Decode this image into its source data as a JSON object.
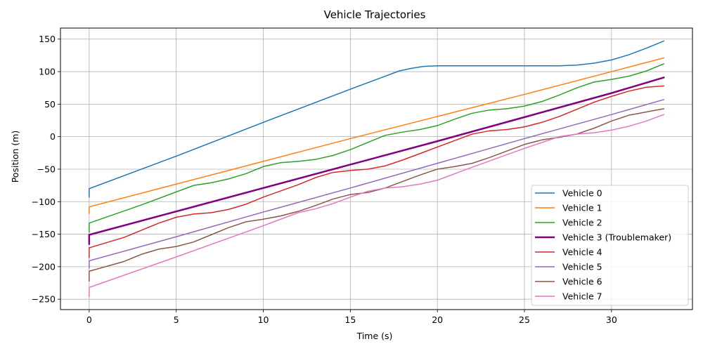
{
  "chart_data": {
    "type": "line",
    "title": "Vehicle Trajectories",
    "xlabel": "Time (s)",
    "ylabel": "Position (m)",
    "xlim": [
      -1.65,
      34.65
    ],
    "ylim": [
      -266,
      167
    ],
    "xticks": [
      0,
      5,
      10,
      15,
      20,
      25,
      30
    ],
    "yticks": [
      -250,
      -200,
      -150,
      -100,
      -50,
      0,
      50,
      100,
      150
    ],
    "grid": true,
    "legend_position": "lower-right",
    "series": [
      {
        "name": "Vehicle 0",
        "color": "#1f77b4",
        "width": 1.5,
        "points": [
          [
            0,
            -93
          ],
          [
            0,
            -80
          ],
          [
            5,
            -30
          ],
          [
            10,
            22
          ],
          [
            15,
            73
          ],
          [
            17,
            93
          ],
          [
            17.8,
            101
          ],
          [
            18.5,
            105
          ],
          [
            19.2,
            108
          ],
          [
            20,
            109
          ],
          [
            22,
            109
          ],
          [
            25,
            109
          ],
          [
            27,
            109
          ],
          [
            28,
            110
          ],
          [
            29,
            113
          ],
          [
            30,
            118
          ],
          [
            31,
            126
          ],
          [
            32,
            136
          ],
          [
            33,
            147
          ]
        ]
      },
      {
        "name": "Vehicle 1",
        "color": "#ff7f0e",
        "width": 1.5,
        "points": [
          [
            0,
            -118
          ],
          [
            0,
            -108
          ],
          [
            5,
            -73
          ],
          [
            10,
            -38
          ],
          [
            15,
            -3
          ],
          [
            20,
            31
          ],
          [
            25,
            65
          ],
          [
            30,
            100
          ],
          [
            33,
            121
          ]
        ]
      },
      {
        "name": "Vehicle 2",
        "color": "#2ca02c",
        "width": 1.5,
        "points": [
          [
            0,
            -147
          ],
          [
            0,
            -133
          ],
          [
            3,
            -105
          ],
          [
            5,
            -85
          ],
          [
            6,
            -75
          ],
          [
            7,
            -71
          ],
          [
            8,
            -65
          ],
          [
            9,
            -57
          ],
          [
            10,
            -46
          ],
          [
            11,
            -40
          ],
          [
            12,
            -38
          ],
          [
            13,
            -35
          ],
          [
            14,
            -29
          ],
          [
            15,
            -20
          ],
          [
            16,
            -9
          ],
          [
            17,
            2
          ],
          [
            18,
            7
          ],
          [
            19,
            11
          ],
          [
            20,
            17
          ],
          [
            21,
            27
          ],
          [
            22,
            36
          ],
          [
            23,
            41
          ],
          [
            24,
            43
          ],
          [
            25,
            47
          ],
          [
            26,
            54
          ],
          [
            27,
            64
          ],
          [
            28,
            75
          ],
          [
            29,
            84
          ],
          [
            30,
            88
          ],
          [
            31,
            93
          ],
          [
            32,
            101
          ],
          [
            33,
            112
          ]
        ]
      },
      {
        "name": "Vehicle 3 (Troublemaker)",
        "color": "#800080",
        "width": 2.5,
        "points": [
          [
            0,
            -165
          ],
          [
            0,
            -151
          ],
          [
            5,
            -115
          ],
          [
            10,
            -79
          ],
          [
            15,
            -43
          ],
          [
            20,
            -7
          ],
          [
            25,
            30
          ],
          [
            30,
            67
          ],
          [
            33,
            91
          ]
        ]
      },
      {
        "name": "Vehicle 4",
        "color": "#d62728",
        "width": 1.5,
        "points": [
          [
            0,
            -186
          ],
          [
            0,
            -171
          ],
          [
            2,
            -155
          ],
          [
            4,
            -133
          ],
          [
            5,
            -124
          ],
          [
            6,
            -119
          ],
          [
            7,
            -117
          ],
          [
            8,
            -112
          ],
          [
            9,
            -104
          ],
          [
            10,
            -93
          ],
          [
            12,
            -74
          ],
          [
            13,
            -63
          ],
          [
            14,
            -55
          ],
          [
            15,
            -52
          ],
          [
            16,
            -50
          ],
          [
            17,
            -45
          ],
          [
            18,
            -36
          ],
          [
            19,
            -26
          ],
          [
            20,
            -16
          ],
          [
            21,
            -6
          ],
          [
            22,
            4
          ],
          [
            23,
            9
          ],
          [
            24,
            11
          ],
          [
            25,
            15
          ],
          [
            26,
            22
          ],
          [
            27,
            31
          ],
          [
            28,
            42
          ],
          [
            29,
            53
          ],
          [
            30,
            62
          ],
          [
            31,
            70
          ],
          [
            32,
            76
          ],
          [
            33,
            78
          ]
        ]
      },
      {
        "name": "Vehicle 5",
        "color": "#9467bd",
        "width": 1.5,
        "points": [
          [
            0,
            -202
          ],
          [
            0,
            -191
          ],
          [
            5,
            -154
          ],
          [
            10,
            -116
          ],
          [
            15,
            -79
          ],
          [
            20,
            -41
          ],
          [
            25,
            -3
          ],
          [
            30,
            34
          ],
          [
            33,
            57
          ]
        ]
      },
      {
        "name": "Vehicle 6",
        "color": "#8c564b",
        "width": 1.5,
        "points": [
          [
            0,
            -222
          ],
          [
            0,
            -207
          ],
          [
            2,
            -192
          ],
          [
            3,
            -181
          ],
          [
            4,
            -173
          ],
          [
            5,
            -169
          ],
          [
            6,
            -162
          ],
          [
            7,
            -151
          ],
          [
            8,
            -140
          ],
          [
            9,
            -131
          ],
          [
            10,
            -127
          ],
          [
            11,
            -122
          ],
          [
            12,
            -115
          ],
          [
            13,
            -106
          ],
          [
            14,
            -96
          ],
          [
            15,
            -89
          ],
          [
            16,
            -86
          ],
          [
            17,
            -79
          ],
          [
            18,
            -69
          ],
          [
            19,
            -59
          ],
          [
            20,
            -50
          ],
          [
            21,
            -46
          ],
          [
            22,
            -41
          ],
          [
            23,
            -32
          ],
          [
            24,
            -22
          ],
          [
            25,
            -12
          ],
          [
            26,
            -5
          ],
          [
            27,
            -1
          ],
          [
            28,
            4
          ],
          [
            29,
            13
          ],
          [
            30,
            24
          ],
          [
            31,
            33
          ],
          [
            32,
            38
          ],
          [
            33,
            43
          ]
        ]
      },
      {
        "name": "Vehicle 7",
        "color": "#e377c2",
        "width": 1.5,
        "points": [
          [
            0,
            -246
          ],
          [
            0,
            -232
          ],
          [
            5,
            -185
          ],
          [
            10,
            -137
          ],
          [
            12,
            -117
          ],
          [
            13,
            -111
          ],
          [
            14,
            -103
          ],
          [
            15,
            -93
          ],
          [
            16,
            -84
          ],
          [
            17,
            -79
          ],
          [
            18,
            -77
          ],
          [
            19,
            -73
          ],
          [
            20,
            -67
          ],
          [
            21,
            -57
          ],
          [
            22,
            -47
          ],
          [
            25,
            -18
          ],
          [
            27,
            0
          ],
          [
            28,
            4
          ],
          [
            29,
            6
          ],
          [
            30,
            10
          ],
          [
            31,
            16
          ],
          [
            32,
            24
          ],
          [
            33,
            34
          ]
        ]
      }
    ]
  }
}
